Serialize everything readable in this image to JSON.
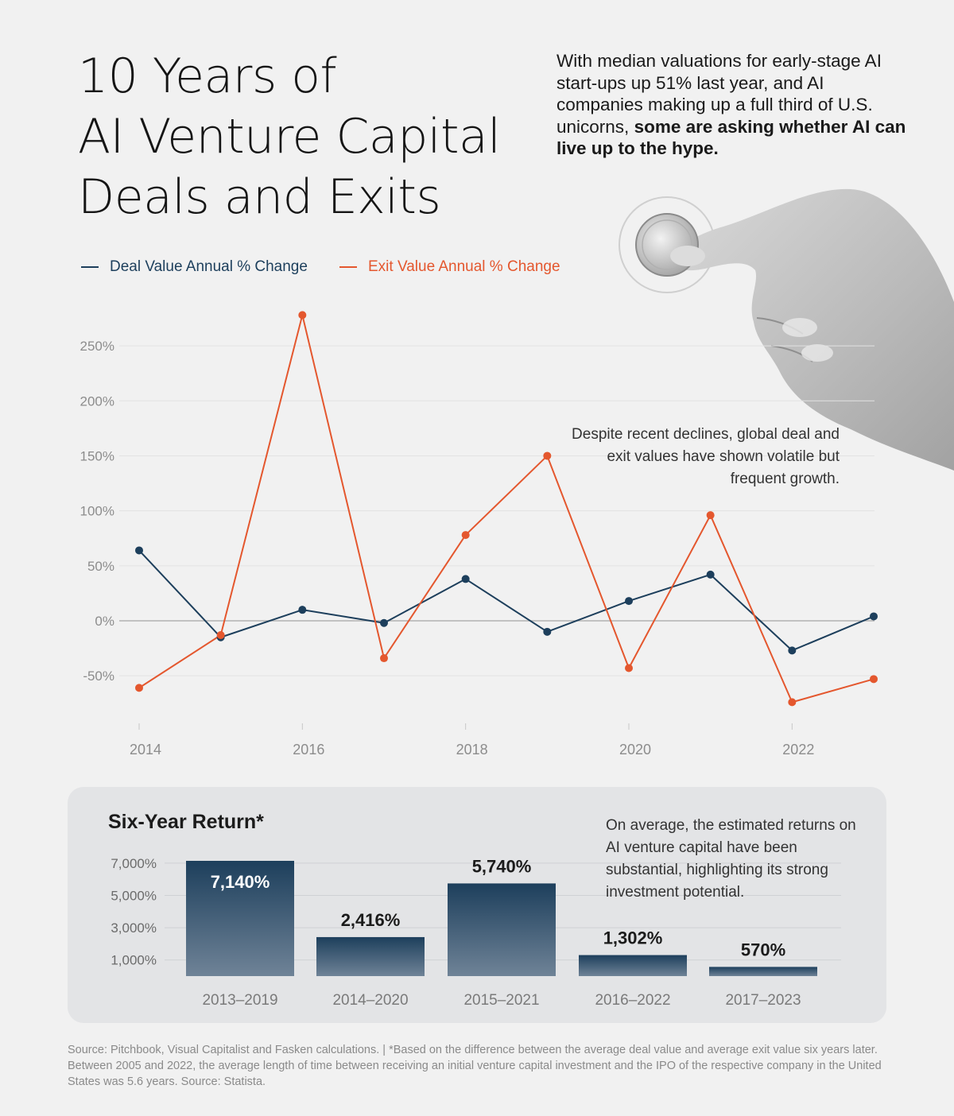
{
  "title_lines": [
    "10 Years of",
    "AI Venture Capital",
    "Deals and Exits"
  ],
  "intro": {
    "plain": "With median valuations for early-stage AI start-ups up 51% last year, and AI companies making up a full third of U.S. unicorns,",
    "bold": "some are asking whether AI can live up to the hype."
  },
  "line_annotation": "Despite recent declines, global deal and exit values have shown volatile but frequent growth.",
  "colors": {
    "deal": "#1d3f5c",
    "exit": "#e4572e",
    "bar_top": "#1d3f5c",
    "bar_bottom": "#6f8397"
  },
  "chart_data": [
    {
      "type": "line",
      "x": [
        2014,
        2015,
        2016,
        2017,
        2018,
        2019,
        2020,
        2021,
        2022,
        2023
      ],
      "xticks": [
        "2014",
        "2016",
        "2018",
        "2020",
        "2022"
      ],
      "yticks": [
        "-50%",
        "0%",
        "50%",
        "100%",
        "150%",
        "200%",
        "250%"
      ],
      "ylim": [
        -95,
        300
      ],
      "grid": true,
      "legend": "top-left",
      "series": [
        {
          "name": "Deal Value Annual % Change",
          "values": [
            64,
            -15,
            10,
            -2,
            38,
            -10,
            18,
            42,
            -27,
            4
          ]
        },
        {
          "name": "Exit Value Annual % Change",
          "values": [
            -61,
            -13,
            278,
            -34,
            78,
            150,
            -43,
            96,
            -74,
            -53
          ]
        }
      ]
    },
    {
      "type": "bar",
      "title": "Six-Year Return*",
      "categories": [
        "2013–2019",
        "2014–2020",
        "2015–2021",
        "2016–2022",
        "2017–2023"
      ],
      "values": [
        7140,
        2416,
        5740,
        1302,
        570
      ],
      "value_labels": [
        "7,140%",
        "2,416%",
        "5,740%",
        "1,302%",
        "570%"
      ],
      "yticks": [
        "1,000%",
        "3,000%",
        "5,000%",
        "7,000%"
      ],
      "ylim": [
        0,
        7000
      ]
    }
  ],
  "bar_annotation": "On average, the estimated returns on AI venture capital have been substantial, highlighting its strong investment potential.",
  "source": "Source: Pitchbook, Visual Capitalist and Fasken calculations. | *Based on the difference between the average deal value and average exit value six years later. Between 2005 and 2022, the average length of time between receiving an initial venture capital investment and the IPO of the respective company in the United States was 5.6 years. Source: Statista."
}
